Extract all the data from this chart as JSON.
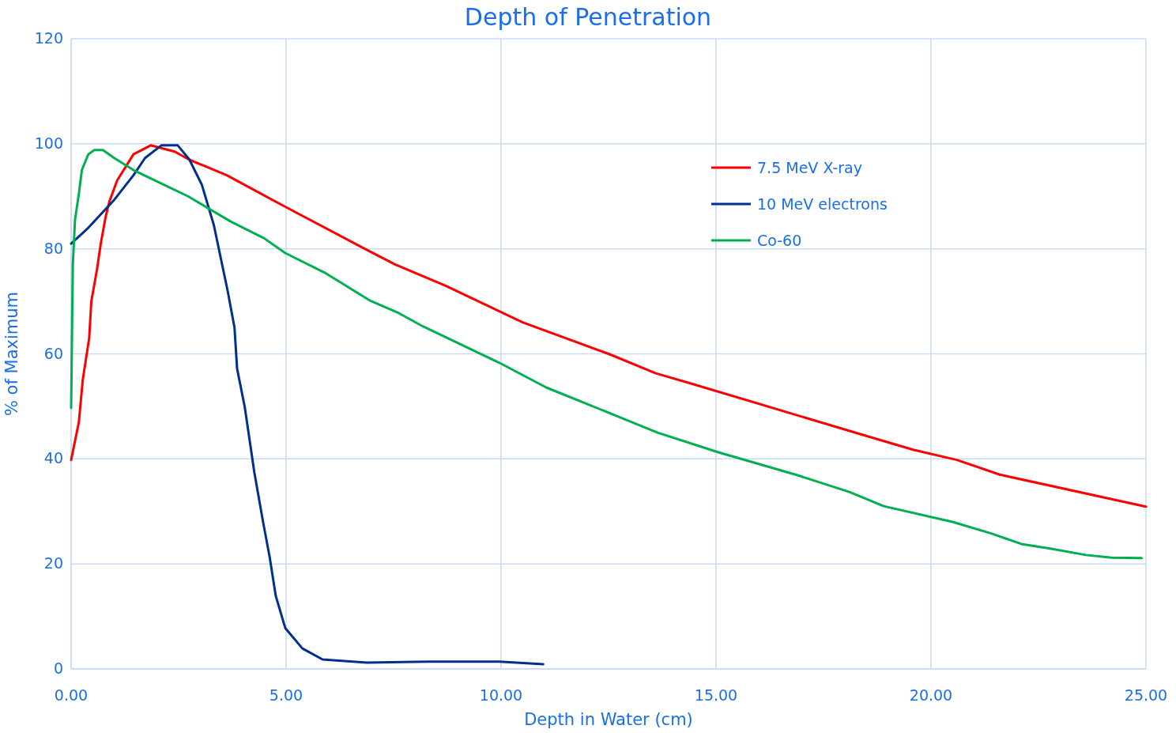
{
  "chart_data": {
    "type": "line",
    "title": "Depth of Penetration",
    "xlabel": "Depth in Water (cm)",
    "ylabel": "% of Maximum",
    "xlim": [
      0,
      25
    ],
    "xticks": [
      {
        "value": 0,
        "label": "0.00"
      },
      {
        "value": 5,
        "label": "5.00"
      },
      {
        "value": 10,
        "label": "10.00"
      },
      {
        "value": 15,
        "label": "15.00"
      },
      {
        "value": 20,
        "label": "20.00"
      },
      {
        "value": 25,
        "label": "25.00"
      }
    ],
    "ylim": [
      0,
      120
    ],
    "yticks": [
      0,
      20,
      40,
      60,
      80,
      100,
      120
    ],
    "grid": true,
    "legend": "top right",
    "marker": "none",
    "line_style": "solid",
    "series": [
      {
        "name": "7.5 MeV X-ray",
        "color": "#ff0000",
        "x": [
          0,
          0.18,
          0.27,
          0.42,
          0.47,
          0.6,
          0.69,
          0.8,
          0.89,
          1.07,
          1.45,
          1.85,
          2.41,
          2.74,
          3.62,
          4.98,
          6.83,
          7.54,
          8.7,
          10.5,
          12.5,
          13.6,
          14.4,
          18.4,
          19.6,
          20.6,
          21.6,
          25
        ],
        "values": [
          39.8,
          47,
          55,
          63,
          70,
          76,
          81,
          86,
          89,
          93,
          98,
          99.7,
          98.5,
          97,
          94,
          88,
          80,
          77,
          73,
          66,
          60,
          56.3,
          54.4,
          44.6,
          41.7,
          39.8,
          37,
          30.9
        ]
      },
      {
        "name": "10 MeV electrons",
        "color": "#002f8e",
        "x": [
          0,
          0.4,
          1.0,
          1.45,
          1.72,
          2.1,
          2.48,
          2.75,
          3.04,
          3.32,
          3.64,
          3.8,
          3.86,
          4.04,
          4.26,
          4.46,
          4.62,
          4.76,
          4.98,
          5.38,
          5.85,
          6.88,
          8.33,
          9.96,
          10.98
        ],
        "values": [
          81,
          84,
          89.3,
          94,
          97.3,
          99.7,
          99.7,
          97,
          92.2,
          84.5,
          72,
          65,
          57.2,
          49.8,
          37.5,
          28.2,
          21.2,
          13.9,
          7.8,
          3.9,
          1.8,
          1.2,
          1.4,
          1.4,
          0.9
        ]
      },
      {
        "name": "Co-60",
        "color": "#00b050",
        "x": [
          0,
          0.04,
          0.09,
          0.18,
          0.25,
          0.4,
          0.54,
          0.74,
          1.0,
          1.45,
          2.08,
          2.72,
          3.71,
          4.49,
          4.98,
          5.89,
          6.94,
          7.61,
          8.19,
          9.96,
          11.05,
          12.86,
          13.64,
          15.04,
          16.85,
          18.1,
          18.9,
          20.5,
          21.4,
          22.1,
          22.8,
          23.6,
          24.2,
          24.9
        ],
        "values": [
          49.7,
          77,
          85.5,
          90.5,
          95,
          98,
          98.8,
          98.8,
          97.3,
          95,
          92.5,
          90,
          85.2,
          82,
          79.2,
          75.5,
          70.2,
          67.8,
          65.2,
          58.3,
          53.6,
          47.6,
          45,
          41.3,
          37,
          33.7,
          31,
          28,
          25.8,
          23.8,
          22.9,
          21.7,
          21.2,
          21.1
        ]
      }
    ]
  }
}
